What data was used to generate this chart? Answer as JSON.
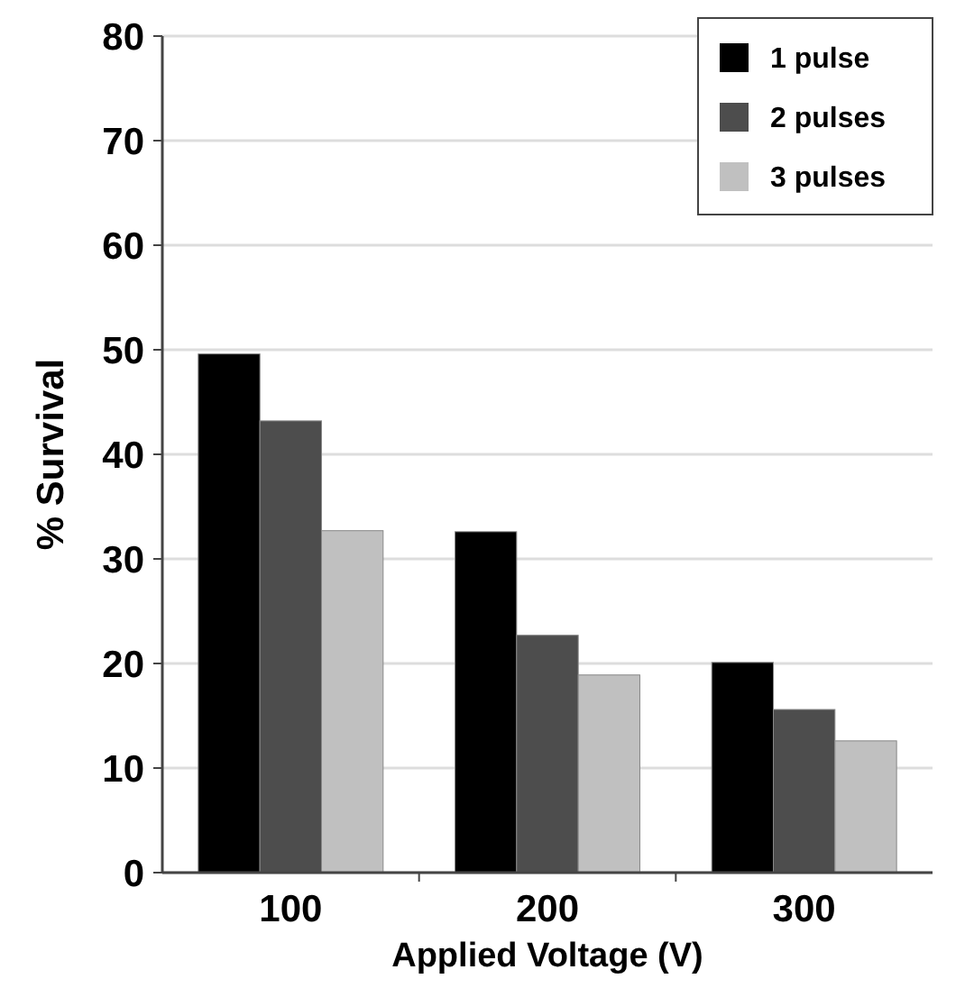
{
  "chart_data": {
    "type": "bar",
    "xlabel": "Applied Voltage (V)",
    "ylabel": "% Survival",
    "categories": [
      "100",
      "200",
      "300"
    ],
    "series": [
      {
        "name": "1 pulse",
        "color": "#000000",
        "values": [
          49.6,
          32.6,
          20.1
        ]
      },
      {
        "name": "2 pulses",
        "color": "#4d4d4d",
        "values": [
          43.2,
          22.7,
          15.6
        ]
      },
      {
        "name": "3 pulses",
        "color": "#c0c0c0",
        "values": [
          32.7,
          18.9,
          12.6
        ]
      }
    ],
    "ylim": [
      0,
      80
    ],
    "yticks": [
      0,
      10,
      20,
      30,
      40,
      50,
      60,
      70,
      80
    ],
    "grid": "y",
    "legend": "top right"
  }
}
